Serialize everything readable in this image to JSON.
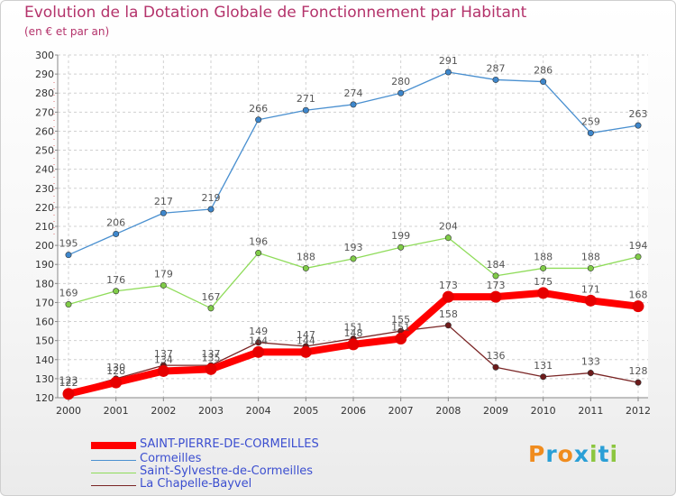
{
  "header": {
    "title": "Evolution de la Dotation Globale de Fonctionnement par Habitant",
    "subtitle": "(en € et par an)"
  },
  "brand": {
    "logo_text": "Proxiti",
    "letter_colors": [
      "#f08c1e",
      "#2a9fd6",
      "#f08c1e",
      "#2a9fd6",
      "#8cc63f",
      "#2a9fd6",
      "#8cc63f"
    ]
  },
  "chart_data": {
    "type": "line",
    "title": "Evolution de la Dotation Globale de Fonctionnement par Habitant",
    "subtitle": "(en € et par an)",
    "xlabel": "",
    "ylabel": "",
    "x": [
      "2000",
      "2001",
      "2002",
      "2003",
      "2004",
      "2005",
      "2006",
      "2007",
      "2008",
      "2009",
      "2010",
      "2011",
      "2012"
    ],
    "ylim": [
      120,
      300
    ],
    "yticks": [
      120,
      130,
      140,
      150,
      160,
      170,
      180,
      190,
      200,
      210,
      220,
      230,
      240,
      250,
      260,
      270,
      280,
      290,
      300
    ],
    "grid": true,
    "legend_position": "bottom-left",
    "series": [
      {
        "name": "Cormeilles",
        "color": "#4a90d0",
        "marker_color": "#3e87cc",
        "values": [
          195,
          206,
          217,
          219,
          266,
          271,
          274,
          280,
          291,
          287,
          286,
          259,
          263
        ]
      },
      {
        "name": "Saint-Sylvestre-de-Cormeilles",
        "color": "#8fdc5a",
        "marker_color": "#80cc48",
        "values": [
          169,
          176,
          179,
          167,
          196,
          188,
          193,
          199,
          204,
          184,
          188,
          188,
          194
        ]
      },
      {
        "name": "La Chapelle-Bayvel",
        "color": "#7a2525",
        "marker_color": "#6e1b1b",
        "values": [
          123,
          130,
          137,
          137,
          149,
          147,
          151,
          155,
          158,
          136,
          131,
          133,
          128
        ]
      },
      {
        "name": "SAINT-PIERRE-DE-CORMEILLES",
        "color": "#ff0000",
        "marker_color": "#e60000",
        "values": [
          122,
          128,
          134,
          135,
          144,
          144,
          148,
          151,
          173,
          173,
          175,
          171,
          168
        ]
      }
    ],
    "legend_order": [
      "SAINT-PIERRE-DE-CORMEILLES",
      "Cormeilles",
      "Saint-Sylvestre-de-Cormeilles",
      "La Chapelle-Bayvel"
    ]
  }
}
